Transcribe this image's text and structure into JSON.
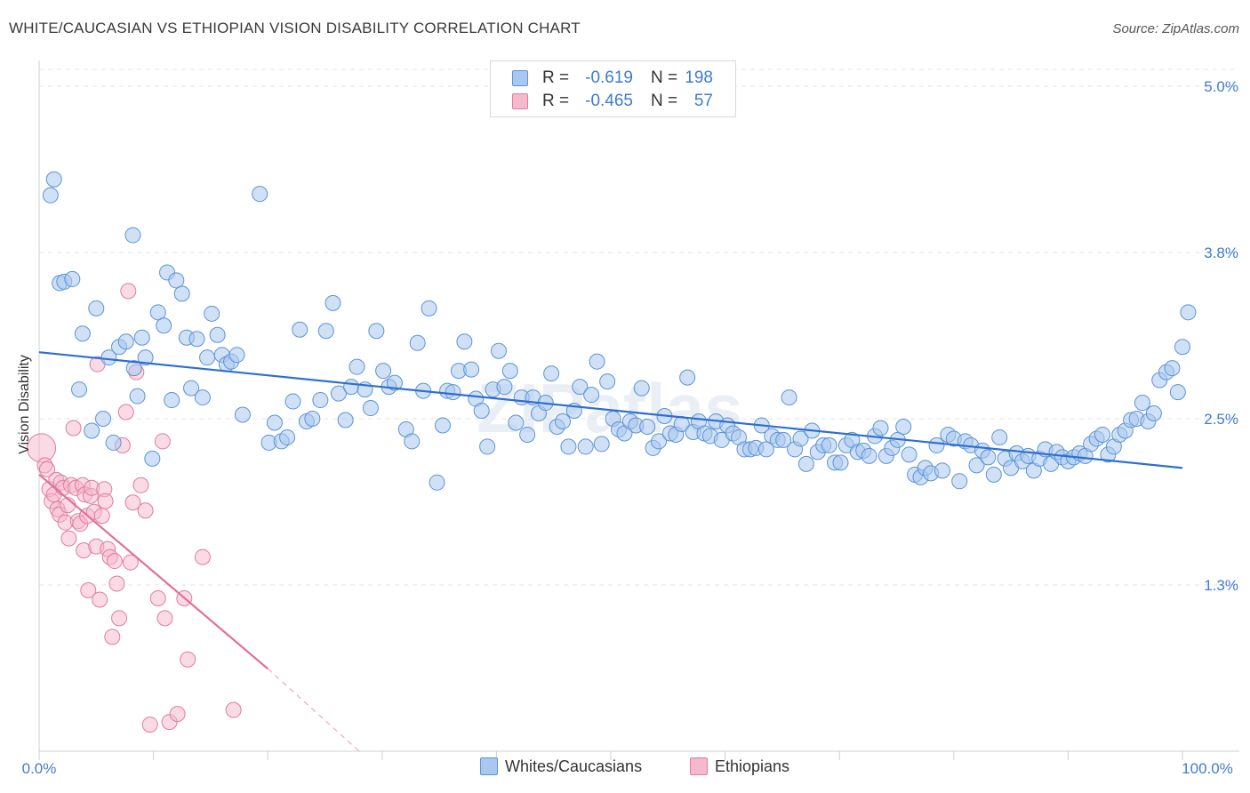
{
  "header": {
    "title": "WHITE/CAUCASIAN VS ETHIOPIAN VISION DISABILITY CORRELATION CHART",
    "source": "Source: ZipAtlas.com"
  },
  "legend": {
    "r_label": "R =",
    "n_label": "N =",
    "rows": [
      {
        "r": "-0.619",
        "n": "198"
      },
      {
        "r": "-0.465",
        "n": "57"
      }
    ]
  },
  "colors": {
    "blue_fill": "#a9c8ef",
    "blue_stroke": "#5b93d8",
    "blue_line": "#2e6fd0",
    "pink_fill": "#f6b8cc",
    "pink_stroke": "#e07ba0",
    "pink_line": "#e0709a",
    "axis_text": "#3f7bd1",
    "grid": "#e3e3e3"
  },
  "chart_data": {
    "type": "scatter",
    "xlabel": "",
    "ylabel": "Vision Disability",
    "xlim": [
      0,
      100
    ],
    "ylim": [
      0,
      5.0
    ],
    "x_tick_labels": [
      "0.0%",
      "100.0%"
    ],
    "y_ticks": [
      1.25,
      2.5,
      3.75,
      5.0
    ],
    "y_tick_labels": [
      "1.3%",
      "2.5%",
      "3.8%",
      "5.0%"
    ],
    "grid": "horizontal dashed",
    "legend_position": "top-center",
    "series": [
      {
        "name": "Whites/Caucasians",
        "color": "blue",
        "trend": {
          "x": [
            0,
            100
          ],
          "y": [
            3.0,
            2.13
          ]
        },
        "points": [
          [
            1.0,
            4.18
          ],
          [
            1.3,
            4.3
          ],
          [
            1.8,
            3.52
          ],
          [
            2.2,
            3.53
          ],
          [
            2.9,
            3.55
          ],
          [
            3.8,
            3.14
          ],
          [
            3.5,
            2.72
          ],
          [
            4.6,
            2.41
          ],
          [
            5.0,
            3.33
          ],
          [
            5.6,
            2.5
          ],
          [
            6.1,
            2.96
          ],
          [
            6.5,
            2.32
          ],
          [
            7.0,
            3.04
          ],
          [
            7.6,
            3.08
          ],
          [
            8.3,
            2.88
          ],
          [
            8.6,
            2.67
          ],
          [
            9.0,
            3.11
          ],
          [
            9.3,
            2.96
          ],
          [
            9.9,
            2.2
          ],
          [
            10.4,
            3.3
          ],
          [
            10.9,
            3.2
          ],
          [
            11.2,
            3.6
          ],
          [
            11.6,
            2.64
          ],
          [
            12.0,
            3.54
          ],
          [
            12.5,
            3.44
          ],
          [
            12.9,
            3.11
          ],
          [
            13.3,
            2.73
          ],
          [
            13.8,
            3.1
          ],
          [
            14.3,
            2.66
          ],
          [
            14.7,
            2.96
          ],
          [
            15.1,
            3.29
          ],
          [
            15.6,
            3.13
          ],
          [
            16.0,
            2.98
          ],
          [
            16.4,
            2.91
          ],
          [
            16.8,
            2.93
          ],
          [
            17.3,
            2.98
          ],
          [
            17.8,
            2.53
          ],
          [
            19.3,
            4.19
          ],
          [
            20.1,
            2.32
          ],
          [
            20.6,
            2.47
          ],
          [
            21.2,
            2.33
          ],
          [
            22.2,
            2.63
          ],
          [
            22.8,
            3.17
          ],
          [
            23.4,
            2.48
          ],
          [
            23.9,
            2.5
          ],
          [
            24.6,
            2.64
          ],
          [
            25.1,
            3.16
          ],
          [
            25.7,
            3.37
          ],
          [
            26.2,
            2.69
          ],
          [
            26.8,
            2.49
          ],
          [
            27.3,
            2.74
          ],
          [
            27.8,
            2.89
          ],
          [
            28.5,
            2.72
          ],
          [
            29.0,
            2.58
          ],
          [
            29.5,
            3.16
          ],
          [
            30.1,
            2.86
          ],
          [
            30.6,
            2.74
          ],
          [
            31.1,
            2.77
          ],
          [
            32.1,
            2.42
          ],
          [
            32.6,
            2.33
          ],
          [
            33.1,
            3.07
          ],
          [
            33.6,
            2.71
          ],
          [
            34.1,
            3.33
          ],
          [
            34.8,
            2.02
          ],
          [
            35.3,
            2.45
          ],
          [
            35.7,
            2.71
          ],
          [
            36.2,
            2.7
          ],
          [
            36.7,
            2.86
          ],
          [
            37.2,
            3.08
          ],
          [
            37.8,
            2.87
          ],
          [
            38.2,
            2.65
          ],
          [
            38.7,
            2.56
          ],
          [
            39.2,
            2.29
          ],
          [
            39.7,
            2.72
          ],
          [
            40.2,
            3.01
          ],
          [
            40.7,
            2.74
          ],
          [
            41.2,
            2.86
          ],
          [
            41.7,
            2.47
          ],
          [
            42.2,
            2.66
          ],
          [
            42.7,
            2.38
          ],
          [
            43.2,
            2.66
          ],
          [
            43.7,
            2.54
          ],
          [
            44.3,
            2.62
          ],
          [
            44.8,
            2.84
          ],
          [
            45.3,
            2.44
          ],
          [
            45.8,
            2.48
          ],
          [
            46.3,
            2.29
          ],
          [
            46.8,
            2.56
          ],
          [
            47.3,
            2.74
          ],
          [
            47.8,
            2.29
          ],
          [
            48.3,
            2.68
          ],
          [
            48.8,
            2.93
          ],
          [
            49.2,
            2.31
          ],
          [
            49.7,
            2.78
          ],
          [
            50.2,
            2.5
          ],
          [
            50.7,
            2.42
          ],
          [
            51.2,
            2.39
          ],
          [
            51.7,
            2.48
          ],
          [
            52.2,
            2.45
          ],
          [
            52.7,
            2.73
          ],
          [
            53.2,
            2.44
          ],
          [
            53.7,
            2.28
          ],
          [
            54.2,
            2.33
          ],
          [
            54.7,
            2.52
          ],
          [
            55.2,
            2.39
          ],
          [
            55.7,
            2.38
          ],
          [
            56.2,
            2.46
          ],
          [
            56.7,
            2.81
          ],
          [
            57.2,
            2.4
          ],
          [
            57.7,
            2.48
          ],
          [
            58.2,
            2.39
          ],
          [
            58.7,
            2.37
          ],
          [
            59.2,
            2.48
          ],
          [
            59.7,
            2.34
          ],
          [
            60.2,
            2.45
          ],
          [
            60.7,
            2.39
          ],
          [
            61.2,
            2.36
          ],
          [
            61.7,
            2.27
          ],
          [
            62.2,
            2.27
          ],
          [
            62.7,
            2.28
          ],
          [
            63.2,
            2.45
          ],
          [
            63.6,
            2.27
          ],
          [
            64.1,
            2.37
          ],
          [
            64.6,
            2.34
          ],
          [
            65.1,
            2.34
          ],
          [
            65.6,
            2.66
          ],
          [
            66.1,
            2.27
          ],
          [
            66.6,
            2.35
          ],
          [
            67.1,
            2.16
          ],
          [
            67.6,
            2.41
          ],
          [
            68.1,
            2.25
          ],
          [
            68.6,
            2.3
          ],
          [
            69.1,
            2.3
          ],
          [
            69.6,
            2.17
          ],
          [
            70.1,
            2.17
          ],
          [
            70.6,
            2.3
          ],
          [
            71.1,
            2.34
          ],
          [
            71.6,
            2.25
          ],
          [
            72.1,
            2.26
          ],
          [
            72.6,
            2.22
          ],
          [
            73.1,
            2.37
          ],
          [
            73.6,
            2.43
          ],
          [
            74.1,
            2.22
          ],
          [
            74.6,
            2.28
          ],
          [
            75.1,
            2.34
          ],
          [
            75.6,
            2.44
          ],
          [
            76.1,
            2.23
          ],
          [
            76.6,
            2.08
          ],
          [
            77.1,
            2.06
          ],
          [
            77.5,
            2.13
          ],
          [
            78.0,
            2.09
          ],
          [
            78.5,
            2.3
          ],
          [
            79.0,
            2.11
          ],
          [
            79.5,
            2.38
          ],
          [
            80.0,
            2.35
          ],
          [
            80.5,
            2.03
          ],
          [
            81.0,
            2.33
          ],
          [
            81.5,
            2.3
          ],
          [
            82.0,
            2.15
          ],
          [
            82.5,
            2.26
          ],
          [
            83.0,
            2.21
          ],
          [
            83.5,
            2.08
          ],
          [
            84.0,
            2.36
          ],
          [
            84.5,
            2.2
          ],
          [
            85.0,
            2.13
          ],
          [
            85.5,
            2.24
          ],
          [
            86.0,
            2.18
          ],
          [
            86.5,
            2.22
          ],
          [
            87.0,
            2.11
          ],
          [
            87.5,
            2.2
          ],
          [
            88.0,
            2.27
          ],
          [
            88.5,
            2.16
          ],
          [
            89.0,
            2.25
          ],
          [
            89.5,
            2.21
          ],
          [
            90.0,
            2.18
          ],
          [
            90.5,
            2.21
          ],
          [
            91.0,
            2.24
          ],
          [
            91.5,
            2.22
          ],
          [
            92.0,
            2.31
          ],
          [
            92.5,
            2.35
          ],
          [
            93.0,
            2.38
          ],
          [
            93.5,
            2.23
          ],
          [
            94.0,
            2.29
          ],
          [
            94.5,
            2.38
          ],
          [
            95.0,
            2.41
          ],
          [
            95.5,
            2.49
          ],
          [
            96.0,
            2.5
          ],
          [
            96.5,
            2.62
          ],
          [
            97.0,
            2.48
          ],
          [
            97.5,
            2.54
          ],
          [
            98.0,
            2.79
          ],
          [
            98.6,
            2.85
          ],
          [
            99.1,
            2.88
          ],
          [
            99.6,
            2.7
          ],
          [
            100.0,
            3.04
          ],
          [
            100.5,
            3.3
          ],
          [
            8.2,
            3.88
          ],
          [
            21.7,
            2.36
          ]
        ]
      },
      {
        "name": "Ethiopians",
        "color": "pink",
        "trend": {
          "x": [
            0,
            20
          ],
          "y": [
            2.08,
            0.62
          ],
          "dashed_extension": {
            "x": [
              20,
              28
            ],
            "y": [
              0.62,
              0.0
            ]
          }
        },
        "points": [
          [
            0.2,
            2.28
          ],
          [
            0.5,
            2.15
          ],
          [
            0.7,
            2.12
          ],
          [
            0.9,
            1.97
          ],
          [
            1.1,
            1.88
          ],
          [
            1.3,
            1.93
          ],
          [
            1.5,
            2.04
          ],
          [
            1.6,
            1.82
          ],
          [
            1.8,
            1.78
          ],
          [
            1.9,
            2.02
          ],
          [
            2.1,
            1.98
          ],
          [
            2.3,
            1.72
          ],
          [
            2.5,
            1.85
          ],
          [
            2.6,
            1.6
          ],
          [
            2.8,
            2.0
          ],
          [
            3.0,
            2.43
          ],
          [
            3.2,
            1.98
          ],
          [
            3.4,
            1.73
          ],
          [
            3.6,
            1.71
          ],
          [
            3.8,
            2.0
          ],
          [
            3.9,
            1.51
          ],
          [
            4.0,
            1.93
          ],
          [
            4.2,
            1.77
          ],
          [
            4.3,
            1.21
          ],
          [
            4.5,
            1.92
          ],
          [
            4.6,
            1.98
          ],
          [
            4.8,
            1.8
          ],
          [
            5.0,
            1.54
          ],
          [
            5.1,
            2.91
          ],
          [
            5.3,
            1.14
          ],
          [
            5.5,
            1.77
          ],
          [
            5.7,
            1.97
          ],
          [
            5.8,
            1.88
          ],
          [
            6.0,
            1.52
          ],
          [
            6.2,
            1.46
          ],
          [
            6.4,
            0.86
          ],
          [
            6.6,
            1.43
          ],
          [
            6.8,
            1.26
          ],
          [
            7.0,
            1.0
          ],
          [
            7.3,
            2.3
          ],
          [
            7.6,
            2.55
          ],
          [
            7.8,
            3.46
          ],
          [
            8.0,
            1.42
          ],
          [
            8.2,
            1.87
          ],
          [
            8.5,
            2.85
          ],
          [
            8.9,
            2.0
          ],
          [
            9.3,
            1.81
          ],
          [
            9.7,
            0.2
          ],
          [
            10.4,
            1.15
          ],
          [
            10.8,
            2.33
          ],
          [
            11.0,
            1.0
          ],
          [
            11.4,
            0.22
          ],
          [
            12.1,
            0.28
          ],
          [
            12.7,
            1.15
          ],
          [
            13.0,
            0.69
          ],
          [
            14.3,
            1.46
          ],
          [
            17.0,
            0.31
          ]
        ]
      }
    ]
  }
}
